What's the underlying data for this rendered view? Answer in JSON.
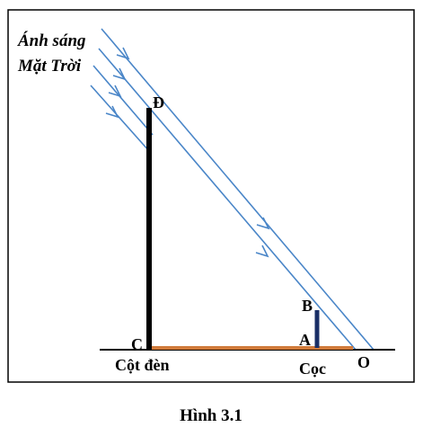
{
  "labels": {
    "sunlight_line1": "Ánh sáng",
    "sunlight_line2": "Mặt Trời",
    "point_D": "Đ",
    "point_C": "C",
    "point_B": "B",
    "point_A": "A",
    "point_O": "O",
    "pole": "Cột đèn",
    "stake": "Cọc"
  },
  "caption": "Hình 3.1",
  "colors": {
    "rays": "#4a86c8",
    "pole": "#000000",
    "stake": "#1a2f66",
    "shadow": "#d07a3a",
    "ground": "#000000",
    "frame": "#000000"
  }
}
